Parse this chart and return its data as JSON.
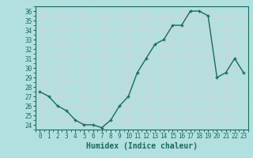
{
  "x": [
    0,
    1,
    2,
    3,
    4,
    5,
    6,
    7,
    8,
    9,
    10,
    11,
    12,
    13,
    14,
    15,
    16,
    17,
    18,
    19,
    20,
    21,
    22,
    23
  ],
  "y": [
    27.5,
    27.0,
    26.0,
    25.5,
    24.5,
    24.0,
    24.0,
    23.7,
    24.5,
    26.0,
    27.0,
    29.5,
    31.0,
    32.5,
    33.0,
    34.5,
    34.5,
    36.0,
    36.0,
    35.5,
    29.0,
    29.5,
    31.0,
    29.5
  ],
  "line_color": "#1a6b5a",
  "marker": "+",
  "marker_size": 3.5,
  "bg_color": "#b2e0e0",
  "grid_color": "#c8d8d8",
  "title": "",
  "xlabel": "Humidex (Indice chaleur)",
  "ylabel": "",
  "ylim": [
    23.5,
    36.5
  ],
  "xlim": [
    -0.5,
    23.5
  ],
  "yticks": [
    24,
    25,
    26,
    27,
    28,
    29,
    30,
    31,
    32,
    33,
    34,
    35,
    36
  ],
  "xticks": [
    0,
    1,
    2,
    3,
    4,
    5,
    6,
    7,
    8,
    9,
    10,
    11,
    12,
    13,
    14,
    15,
    16,
    17,
    18,
    19,
    20,
    21,
    22,
    23
  ],
  "tick_color": "#1a6b5a",
  "label_fontsize": 5.5,
  "xlabel_fontsize": 7,
  "linewidth": 1.0,
  "spine_color": "#1a6b5a"
}
